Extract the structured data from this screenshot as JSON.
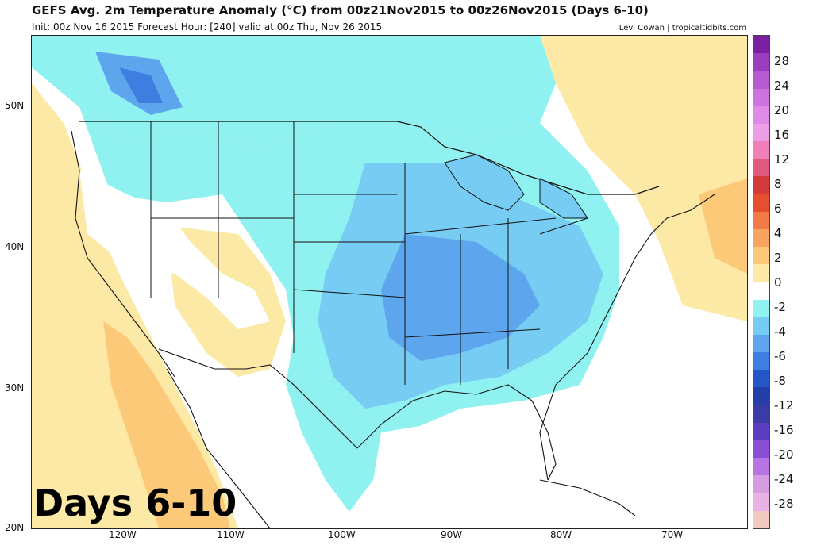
{
  "title": "GEFS Avg. 2m Temperature Anomaly (°C) from 00z21Nov2015 to 00z26Nov2015 (Days 6-10)",
  "subtitle": "Init: 00z Nov 16 2015   Forecast Hour: [240]   valid at 00z Thu, Nov 26 2015",
  "credit": "Levi Cowan | tropicaltidbits.com",
  "overlay_label": "Days 6-10",
  "lat_labels": [
    "50N",
    "40N",
    "30N",
    "20N"
  ],
  "lon_labels": [
    "120W",
    "110W",
    "100W",
    "90W",
    "80W",
    "70W"
  ],
  "colorbar": {
    "tick_labels": [
      "28",
      "24",
      "20",
      "16",
      "12",
      "8",
      "6",
      "4",
      "2",
      "0",
      "-2",
      "-4",
      "-6",
      "-8",
      "-12",
      "-16",
      "-20",
      "-24",
      "-28"
    ],
    "colors": [
      "#7b1fa2",
      "#9c3cbf",
      "#b65ad0",
      "#cd72df",
      "#e08ae8",
      "#ec9ee6",
      "#ef7fb6",
      "#e05a80",
      "#d33a3a",
      "#e4502e",
      "#f07a48",
      "#f7a55e",
      "#fbc978",
      "#fde9a6",
      "#ffffff",
      "#8ff1f0",
      "#76ccf2",
      "#5da6ee",
      "#3e7ee0",
      "#2458c6",
      "#2440a8",
      "#3b3ba8",
      "#5a3ebe",
      "#8a4fd4",
      "#b874e2",
      "#d59de0",
      "#e6b3e4",
      "#f2c9c0"
    ]
  }
}
